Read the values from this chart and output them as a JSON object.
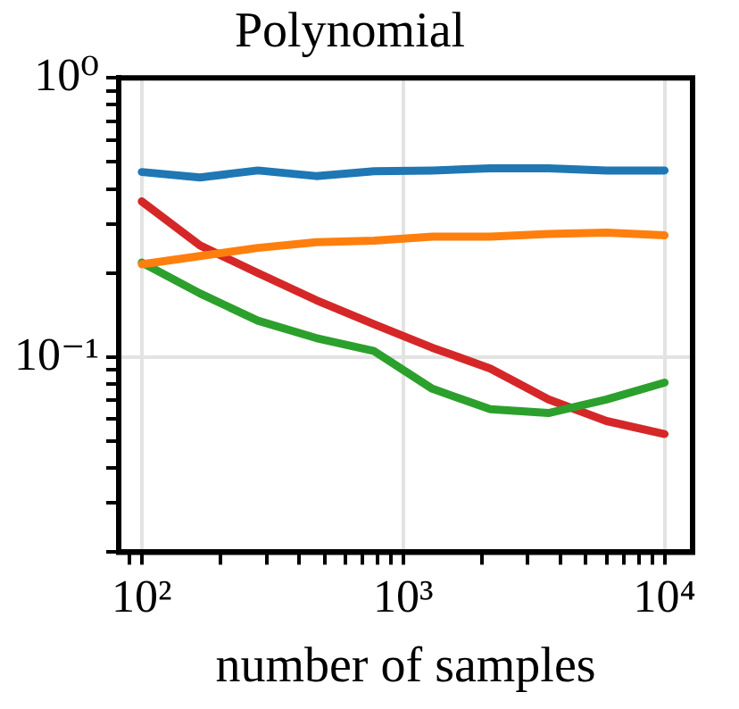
{
  "chart_data": {
    "type": "line",
    "title": "Polynomial",
    "xlabel": "number of samples",
    "x": [
      100,
      167,
      278,
      464,
      774,
      1292,
      2154,
      3594,
      5995,
      10000
    ],
    "series": [
      {
        "color": "#1f77b4",
        "values": [
          0.46,
          0.44,
          0.466,
          0.445,
          0.463,
          0.466,
          0.474,
          0.474,
          0.466,
          0.466
        ]
      },
      {
        "color": "#ff7f0e",
        "values": [
          0.215,
          0.23,
          0.246,
          0.258,
          0.261,
          0.27,
          0.27,
          0.276,
          0.279,
          0.273
        ]
      },
      {
        "color": "#2ca02c",
        "values": [
          0.218,
          0.169,
          0.135,
          0.117,
          0.105,
          0.077,
          0.065,
          0.063,
          0.0705,
          0.081
        ]
      },
      {
        "color": "#d62728",
        "values": [
          0.361,
          0.251,
          0.2,
          0.16,
          0.131,
          0.108,
          0.091,
          0.0705,
          0.059,
          0.053
        ]
      }
    ],
    "log": "xy",
    "grid": true,
    "legend": false,
    "marker": "none",
    "line_style": "solid",
    "xlim": [
      81.6,
      12800
    ],
    "ylim": [
      0.02,
      1
    ],
    "xticks": [
      {
        "value": 90,
        "label": null
      },
      {
        "value": 100,
        "label": "10²"
      },
      {
        "value": 200,
        "label": null
      },
      {
        "value": 300,
        "label": null
      },
      {
        "value": 400,
        "label": null
      },
      {
        "value": 500,
        "label": null
      },
      {
        "value": 600,
        "label": null
      },
      {
        "value": 700,
        "label": null
      },
      {
        "value": 800,
        "label": null
      },
      {
        "value": 900,
        "label": null
      },
      {
        "value": 1000,
        "label": "10³"
      },
      {
        "value": 2000,
        "label": null
      },
      {
        "value": 3000,
        "label": null
      },
      {
        "value": 4000,
        "label": null
      },
      {
        "value": 5000,
        "label": null
      },
      {
        "value": 6000,
        "label": null
      },
      {
        "value": 7000,
        "label": null
      },
      {
        "value": 8000,
        "label": null
      },
      {
        "value": 9000,
        "label": null
      },
      {
        "value": 10000,
        "label": "10⁴"
      }
    ],
    "yticks": [
      {
        "value": 0.02,
        "label": null
      },
      {
        "value": 0.03,
        "label": null
      },
      {
        "value": 0.04,
        "label": null
      },
      {
        "value": 0.05,
        "label": null
      },
      {
        "value": 0.06,
        "label": null
      },
      {
        "value": 0.07,
        "label": null
      },
      {
        "value": 0.08,
        "label": null
      },
      {
        "value": 0.09,
        "label": null
      },
      {
        "value": 0.1,
        "label": "10⁻¹"
      },
      {
        "value": 0.2,
        "label": null
      },
      {
        "value": 0.3,
        "label": null
      },
      {
        "value": 0.4,
        "label": null
      },
      {
        "value": 0.5,
        "label": null
      },
      {
        "value": 0.6,
        "label": null
      },
      {
        "value": 0.7,
        "label": null
      },
      {
        "value": 0.8,
        "label": null
      },
      {
        "value": 0.9,
        "label": null
      },
      {
        "value": 1,
        "label": "10⁰"
      }
    ]
  }
}
